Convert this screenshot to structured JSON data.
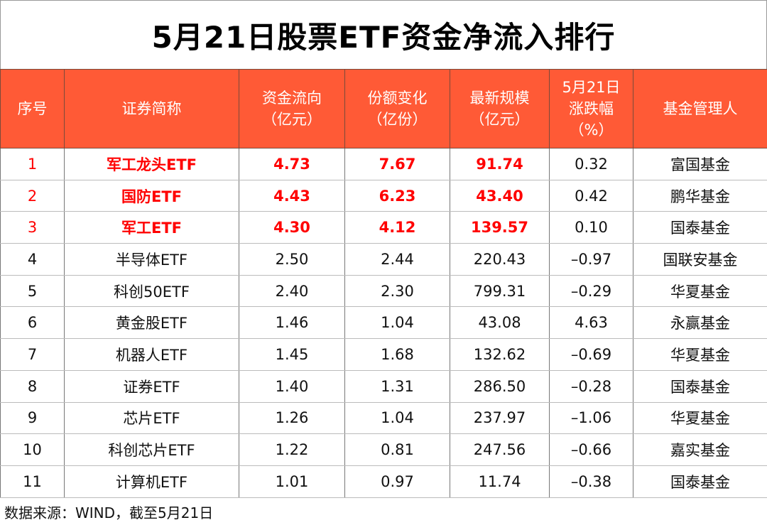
{
  "title": "5月21日股票ETF资金净流入排行",
  "header": {
    "rank": "序号",
    "name": "证券简称",
    "flow": [
      "资金流向",
      "（亿元）"
    ],
    "shares": [
      "份额变化",
      "（亿份）"
    ],
    "scale": [
      "最新规模",
      "（亿元）"
    ],
    "change": [
      "5月21日",
      "涨跌幅",
      "（%）"
    ],
    "manager": "基金管理人"
  },
  "highlight_color": "#FF0000",
  "header_color": "#FF5A36",
  "rows": [
    {
      "rank": "1",
      "name": "军工龙头ETF",
      "flow": "4.73",
      "shares": "7.67",
      "scale": "91.74",
      "change": "0.32",
      "manager": "富国基金",
      "highlight": true
    },
    {
      "rank": "2",
      "name": "国防ETF",
      "flow": "4.43",
      "shares": "6.23",
      "scale": "43.40",
      "change": "0.42",
      "manager": "鹏华基金",
      "highlight": true
    },
    {
      "rank": "3",
      "name": "军工ETF",
      "flow": "4.30",
      "shares": "4.12",
      "scale": "139.57",
      "change": "0.10",
      "manager": "国泰基金",
      "highlight": true
    },
    {
      "rank": "4",
      "name": "半导体ETF",
      "flow": "2.50",
      "shares": "2.44",
      "scale": "220.43",
      "change": "–0.97",
      "manager": "国联安基金"
    },
    {
      "rank": "5",
      "name": "科创50ETF",
      "flow": "2.40",
      "shares": "2.30",
      "scale": "799.31",
      "change": "–0.29",
      "manager": "华夏基金"
    },
    {
      "rank": "6",
      "name": "黄金股ETF",
      "flow": "1.46",
      "shares": "1.04",
      "scale": "43.08",
      "change": "4.63",
      "manager": "永赢基金"
    },
    {
      "rank": "7",
      "name": "机器人ETF",
      "flow": "1.45",
      "shares": "1.68",
      "scale": "132.62",
      "change": "–0.69",
      "manager": "华夏基金"
    },
    {
      "rank": "8",
      "name": "证券ETF",
      "flow": "1.40",
      "shares": "1.31",
      "scale": "286.50",
      "change": "–0.28",
      "manager": "国泰基金"
    },
    {
      "rank": "9",
      "name": "芯片ETF",
      "flow": "1.26",
      "shares": "1.04",
      "scale": "237.97",
      "change": "–1.06",
      "manager": "华夏基金"
    },
    {
      "rank": "10",
      "name": "科创芯片ETF",
      "flow": "1.22",
      "shares": "0.81",
      "scale": "247.56",
      "change": "–0.66",
      "manager": "嘉实基金"
    },
    {
      "rank": "11",
      "name": "计算机ETF",
      "flow": "1.01",
      "shares": "0.97",
      "scale": "11.74",
      "change": "–0.38",
      "manager": "国泰基金"
    }
  ],
  "footer": "数据来源：WIND，截至5月21日"
}
